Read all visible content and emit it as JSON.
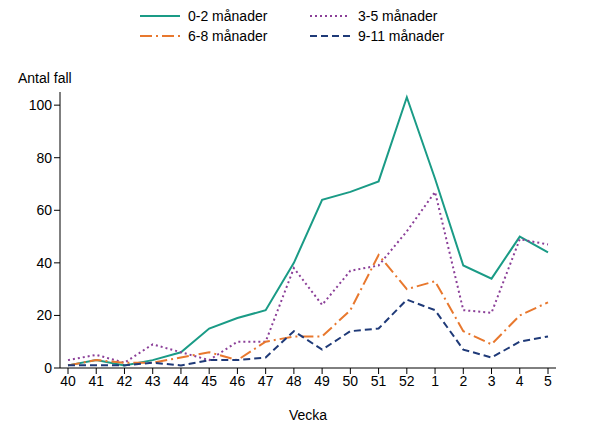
{
  "chart_data": {
    "type": "line",
    "y_label": "Antal fall",
    "x_label": "Vecka",
    "categories": [
      "40",
      "41",
      "42",
      "43",
      "44",
      "45",
      "46",
      "47",
      "48",
      "49",
      "50",
      "51",
      "52",
      "1",
      "2",
      "3",
      "4",
      "5"
    ],
    "series": [
      {
        "name": "0-2 månader",
        "color": "#1a9b86",
        "line_style": "solid",
        "values": [
          1,
          3,
          1,
          3,
          6,
          15,
          19,
          22,
          40,
          64,
          67,
          71,
          103,
          72,
          39,
          34,
          50,
          44
        ]
      },
      {
        "name": "3-5 månader",
        "color": "#8b3f98",
        "line_style": "dotted",
        "values": [
          3,
          5,
          2,
          9,
          6,
          3,
          10,
          10,
          38,
          24,
          37,
          39,
          52,
          67,
          22,
          21,
          49,
          47
        ]
      },
      {
        "name": "6-8 månader",
        "color": "#e8782e",
        "line_style": "dashdot",
        "values": [
          1,
          3,
          2,
          2,
          4,
          6,
          3,
          10,
          12,
          12,
          22,
          43,
          30,
          33,
          14,
          9,
          20,
          25
        ]
      },
      {
        "name": "9-11 månader",
        "color": "#1f3a78",
        "line_style": "dashed",
        "values": [
          1,
          1,
          1,
          2,
          1,
          3,
          3,
          4,
          14,
          7,
          14,
          15,
          26,
          22,
          7,
          4,
          10,
          12
        ]
      }
    ],
    "ylim": [
      0,
      105
    ],
    "yticks": [
      0,
      20,
      40,
      60,
      80,
      100
    ],
    "grid": false,
    "legend": "top"
  }
}
